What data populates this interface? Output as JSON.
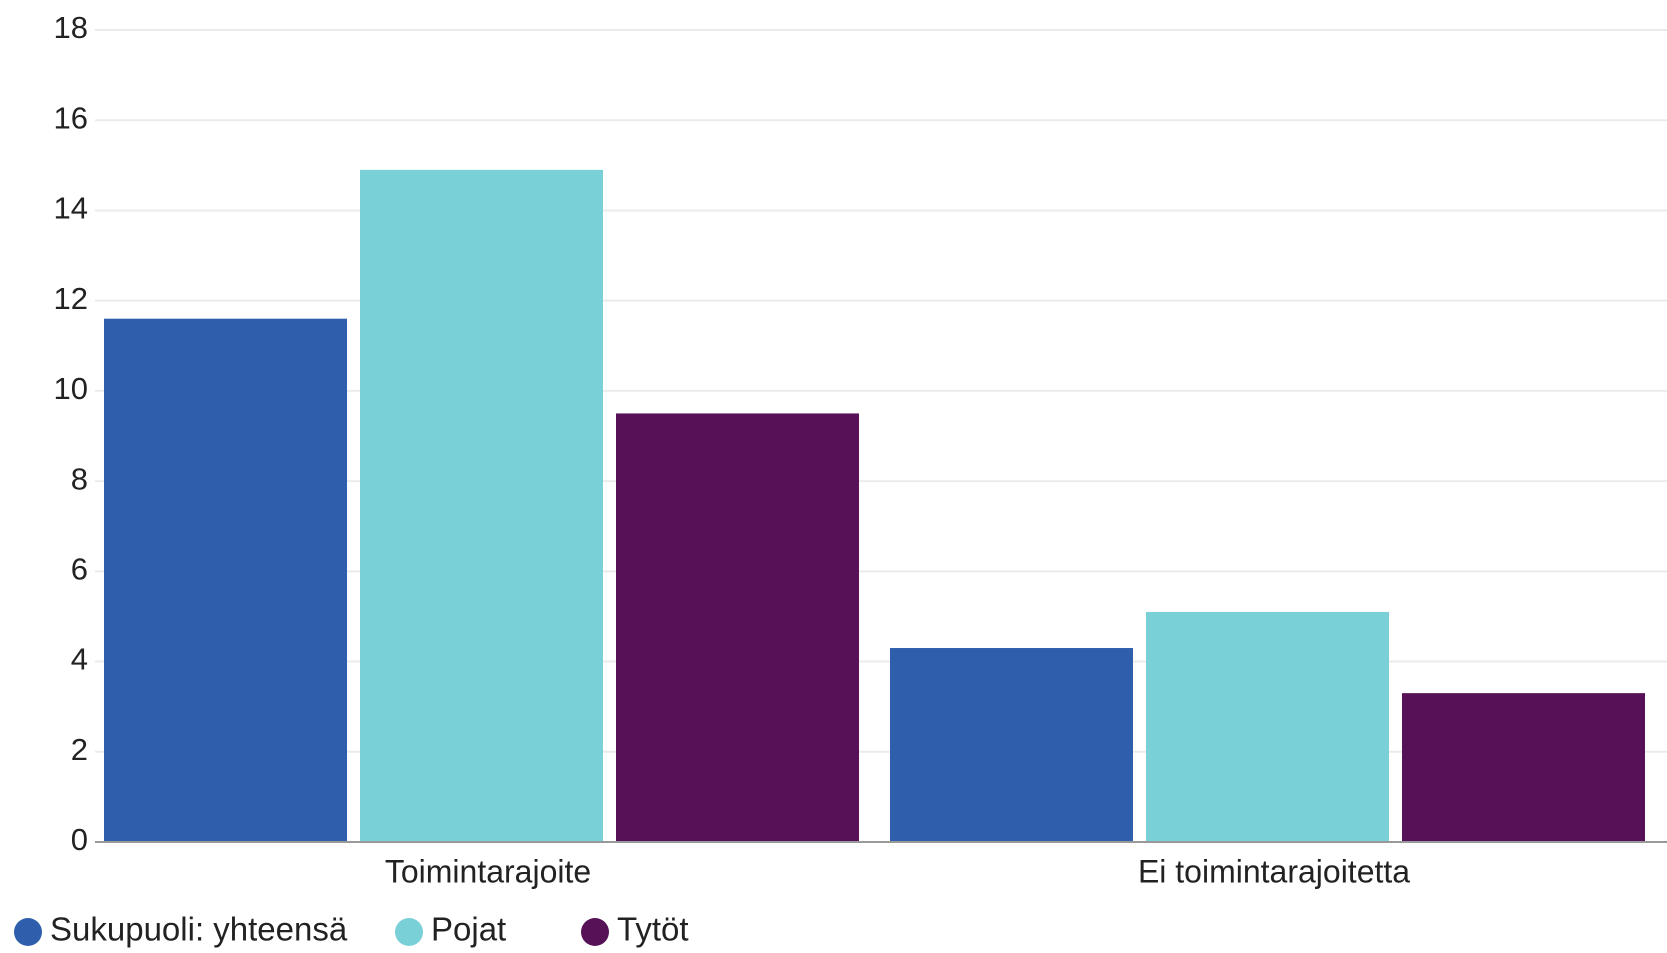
{
  "chart_data": {
    "type": "bar",
    "title": "",
    "xlabel": "",
    "ylabel": "",
    "categories": [
      "Toimintarajoite",
      "Ei toimintarajoitetta"
    ],
    "series": [
      {
        "name": "Sukupuoli: yhteensä",
        "values": [
          11.6,
          4.3
        ],
        "color": "#2f5fac"
      },
      {
        "name": "Pojat",
        "values": [
          14.9,
          5.1
        ],
        "color": "#79d0d7"
      },
      {
        "name": "Tytöt",
        "values": [
          9.5,
          3.3
        ],
        "color": "#561157"
      }
    ],
    "ylim": [
      0,
      18
    ],
    "yticks": [
      "0",
      "2",
      "4",
      "6",
      "8",
      "10",
      "12",
      "14",
      "16",
      "18"
    ],
    "grid": true,
    "legend_position": "bottom-left"
  }
}
